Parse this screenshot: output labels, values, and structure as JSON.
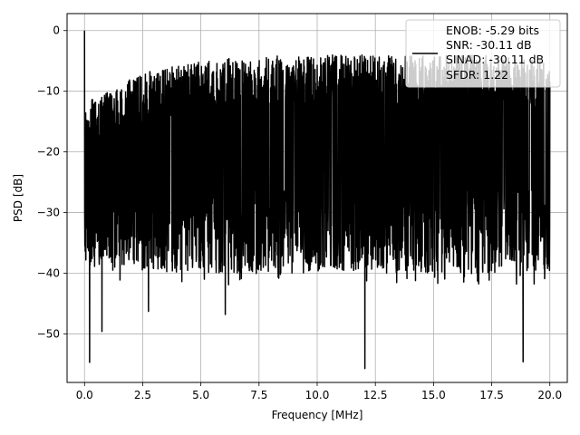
{
  "chart_data": {
    "type": "line",
    "title": "",
    "xlabel": "Frequency [MHz]",
    "ylabel": "PSD [dB]",
    "xlim": [
      -0.75,
      20.75
    ],
    "ylim": [
      -58,
      2.8
    ],
    "xticks": [
      0.0,
      2.5,
      5.0,
      7.5,
      10.0,
      12.5,
      15.0,
      17.5,
      20.0
    ],
    "xtick_labels": [
      "0.0",
      "2.5",
      "5.0",
      "7.5",
      "10.0",
      "12.5",
      "15.0",
      "17.5",
      "20.0"
    ],
    "yticks": [
      0,
      -10,
      -20,
      -30,
      -40,
      -50
    ],
    "ytick_labels": [
      "0",
      "−10",
      "−20",
      "−30",
      "−40",
      "−50"
    ],
    "grid": true,
    "legend_position": "top-right",
    "legend": {
      "lines": [
        "ENOB: -5.29 bits",
        "SNR: -30.11 dB",
        "SINAD: -30.11 dB",
        "SFDR: 1.22"
      ]
    },
    "series": [
      {
        "color": "#000000",
        "x_start": 0.0,
        "x_end": 20.0,
        "peak": {
          "x": 0.0,
          "y": 0.0
        },
        "noise_floor_median": -20,
        "noise_upper_envelope": [
          {
            "x": 0.0,
            "y": -12
          },
          {
            "x": 2.5,
            "y": -7
          },
          {
            "x": 5.0,
            "y": -5
          },
          {
            "x": 7.5,
            "y": -4
          },
          {
            "x": 10.0,
            "y": -4
          },
          {
            "x": 12.5,
            "y": -4
          },
          {
            "x": 15.0,
            "y": -4
          },
          {
            "x": 17.5,
            "y": -4
          },
          {
            "x": 20.0,
            "y": -5
          }
        ],
        "notable_minima": [
          {
            "x": 0.22,
            "y": -54.7
          },
          {
            "x": 0.75,
            "y": -49.6
          },
          {
            "x": 2.75,
            "y": -46.3
          },
          {
            "x": 6.05,
            "y": -46.8
          },
          {
            "x": 12.05,
            "y": -55.7
          },
          {
            "x": 18.85,
            "y": -54.6
          }
        ]
      }
    ]
  }
}
